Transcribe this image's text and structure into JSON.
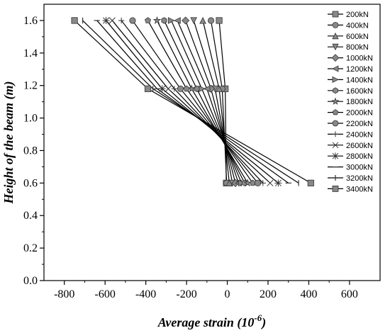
{
  "chart_data": {
    "type": "line",
    "title": "",
    "xlabel": "Average strain (10",
    "xlabel_sup": "-6",
    "xlabel_close": ")",
    "ylabel": "Height of the beam (m)",
    "xlim": [
      -900,
      750
    ],
    "ylim": [
      0.0,
      1.7
    ],
    "xticks": [
      -800,
      -600,
      -400,
      -200,
      0,
      200,
      400,
      600
    ],
    "xtick_labels": [
      "-800",
      "-600",
      "-400",
      "-200",
      "0",
      "200",
      "400",
      "600"
    ],
    "yticks": [
      0.0,
      0.2,
      0.4,
      0.6,
      0.8,
      1.0,
      1.2,
      1.4,
      1.6
    ],
    "ytick_labels": [
      "0.0",
      "0.2",
      "0.4",
      "0.6",
      "0.8",
      "1.0",
      "1.2",
      "1.4",
      "1.6"
    ],
    "grid": false,
    "legend_position": "top-right",
    "series_color": "#000000",
    "heights": [
      1.6,
      1.18,
      0.6
    ],
    "series": [
      {
        "name": "200kN",
        "marker": "square",
        "values": [
          -40,
          -10,
          -5
        ]
      },
      {
        "name": "400kN",
        "marker": "circle",
        "values": [
          -80,
          -25,
          -3
        ]
      },
      {
        "name": "600kN",
        "marker": "triangle-up",
        "values": [
          -120,
          -40,
          10
        ]
      },
      {
        "name": "800kN",
        "marker": "triangle-down",
        "values": [
          -165,
          -60,
          25
        ]
      },
      {
        "name": "1000kN",
        "marker": "diamond",
        "values": [
          -205,
          -80,
          40
        ]
      },
      {
        "name": "1200kN",
        "marker": "triangle-left",
        "values": [
          -245,
          -100,
          55
        ]
      },
      {
        "name": "1400kN",
        "marker": "triangle-right",
        "values": [
          -275,
          -125,
          70
        ]
      },
      {
        "name": "1600kN",
        "marker": "hexagon",
        "values": [
          -310,
          -150,
          85
        ]
      },
      {
        "name": "1800kN",
        "marker": "star",
        "values": [
          -345,
          -175,
          100
        ]
      },
      {
        "name": "2000kN",
        "marker": "pentagon",
        "values": [
          -390,
          -200,
          125
        ]
      },
      {
        "name": "2200kN",
        "marker": "circle",
        "values": [
          -465,
          -230,
          150
        ]
      },
      {
        "name": "2400kN",
        "marker": "plus",
        "values": [
          -520,
          -260,
          175
        ]
      },
      {
        "name": "2600kN",
        "marker": "cross",
        "values": [
          -565,
          -290,
          210
        ]
      },
      {
        "name": "2800kN",
        "marker": "asterisk",
        "values": [
          -595,
          -320,
          250
        ]
      },
      {
        "name": "3000kN",
        "marker": "dash",
        "values": [
          -640,
          -345,
          300
        ]
      },
      {
        "name": "3200kN",
        "marker": "vbar",
        "values": [
          -710,
          -365,
          350
        ]
      },
      {
        "name": "3400kN",
        "marker": "square",
        "values": [
          -750,
          -390,
          410
        ]
      }
    ]
  }
}
